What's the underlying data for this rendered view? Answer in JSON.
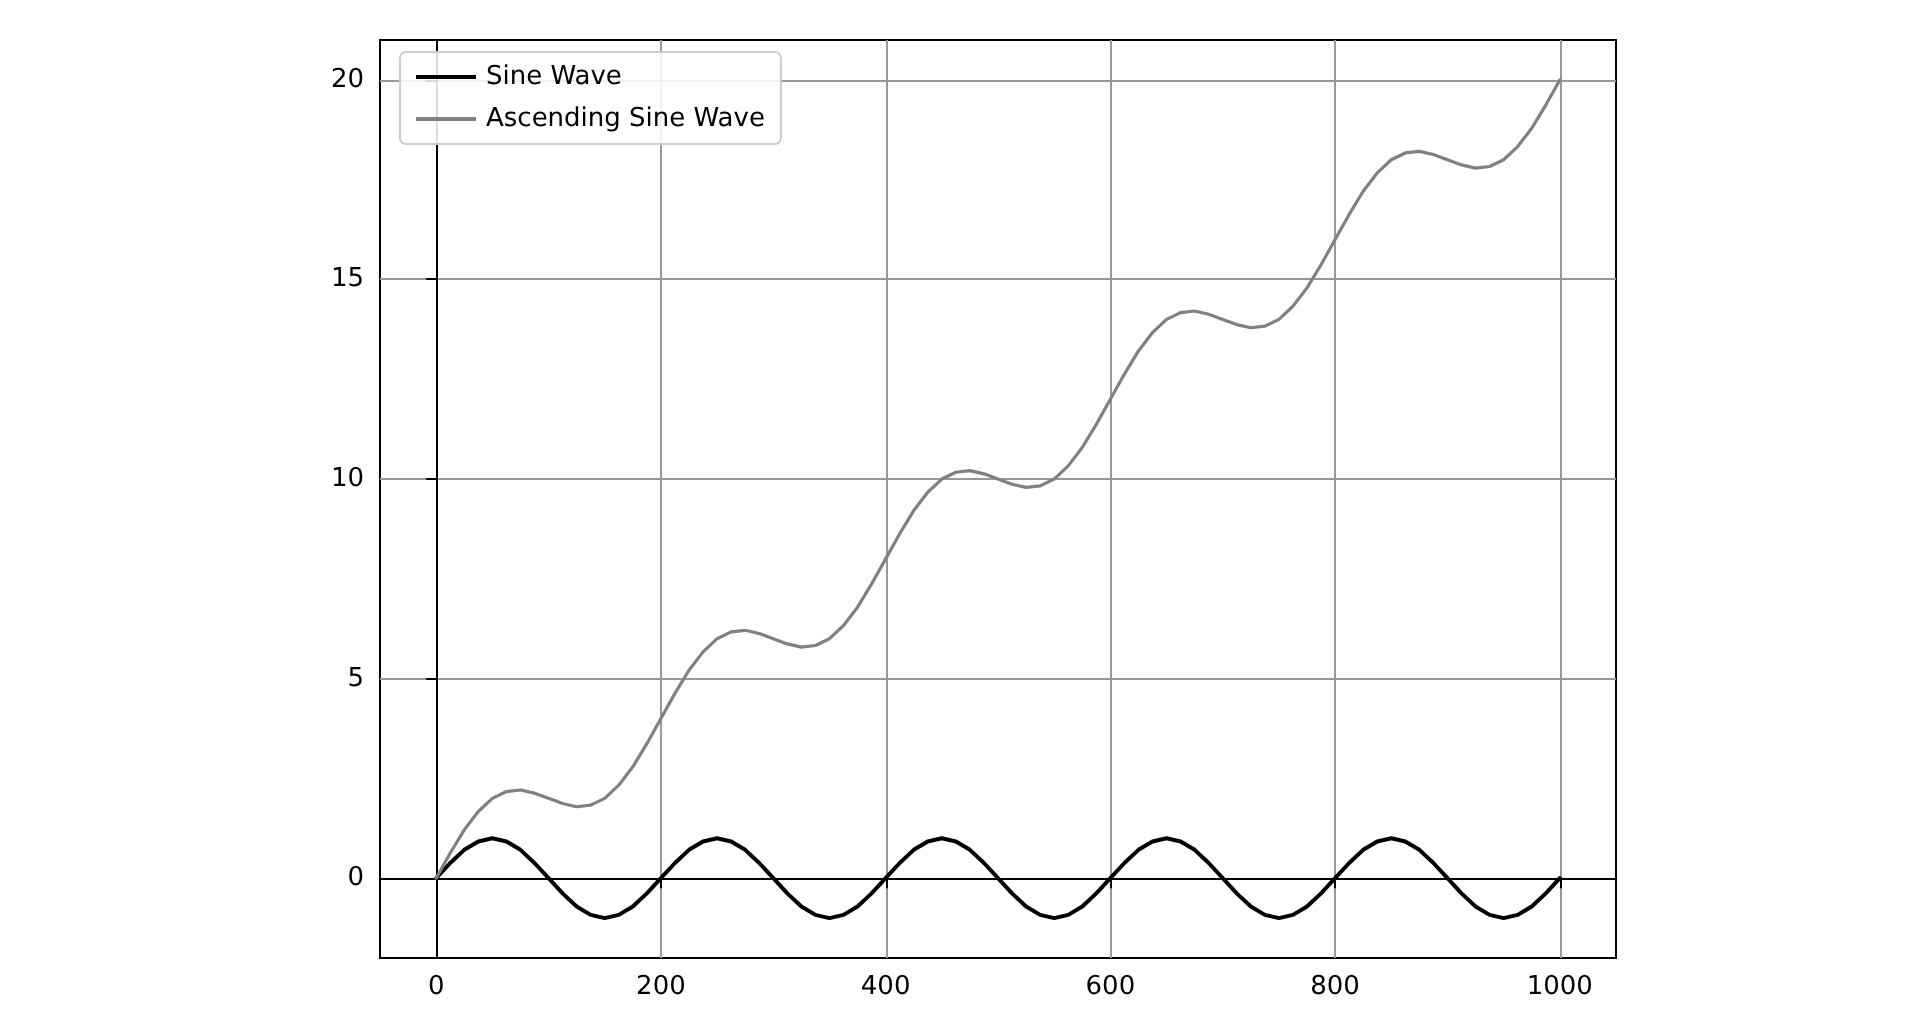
{
  "chart_data": {
    "type": "line",
    "x": [
      0,
      12.5,
      25,
      37.5,
      50,
      62.5,
      75,
      87.5,
      100,
      112.5,
      125,
      137.5,
      150,
      162.5,
      175,
      187.5,
      200,
      212.5,
      225,
      237.5,
      250,
      262.5,
      275,
      287.5,
      300,
      312.5,
      325,
      337.5,
      350,
      362.5,
      375,
      387.5,
      400,
      412.5,
      425,
      437.5,
      450,
      462.5,
      475,
      487.5,
      500,
      512.5,
      525,
      537.5,
      550,
      562.5,
      575,
      587.5,
      600,
      612.5,
      625,
      637.5,
      650,
      662.5,
      675,
      687.5,
      700,
      712.5,
      725,
      737.5,
      750,
      762.5,
      775,
      787.5,
      800,
      812.5,
      825,
      837.5,
      850,
      862.5,
      875,
      887.5,
      900,
      912.5,
      925,
      937.5,
      950,
      962.5,
      975,
      987.5,
      1000
    ],
    "series": [
      {
        "name": "Sine Wave",
        "color": "#000000",
        "values": [
          0,
          0.38,
          0.71,
          0.92,
          1,
          0.92,
          0.71,
          0.38,
          0,
          -0.38,
          -0.71,
          -0.92,
          -1,
          -0.92,
          -0.71,
          -0.38,
          0,
          0.38,
          0.71,
          0.92,
          1,
          0.92,
          0.71,
          0.38,
          0,
          -0.38,
          -0.71,
          -0.92,
          -1,
          -0.92,
          -0.71,
          -0.38,
          0,
          0.38,
          0.71,
          0.92,
          1,
          0.92,
          0.71,
          0.38,
          0,
          -0.38,
          -0.71,
          -0.92,
          -1,
          -0.92,
          -0.71,
          -0.38,
          0,
          0.38,
          0.71,
          0.92,
          1,
          0.92,
          0.71,
          0.38,
          0,
          -0.38,
          -0.71,
          -0.92,
          -1,
          -0.92,
          -0.71,
          -0.38,
          0,
          0.38,
          0.71,
          0.92,
          1,
          0.92,
          0.71,
          0.38,
          0,
          -0.38,
          -0.71,
          -0.92,
          -1,
          -0.92,
          -0.71,
          -0.38,
          0
        ]
      },
      {
        "name": "Ascending Sine Wave",
        "color": "#808080",
        "values": [
          0,
          0.63,
          1.21,
          1.67,
          2,
          2.17,
          2.21,
          2.13,
          2,
          1.87,
          1.79,
          1.83,
          2,
          2.33,
          2.79,
          3.37,
          4,
          4.63,
          5.21,
          5.67,
          6,
          6.17,
          6.21,
          6.13,
          6,
          5.87,
          5.79,
          5.83,
          6,
          6.33,
          6.79,
          7.37,
          8,
          8.63,
          9.21,
          9.67,
          10,
          10.17,
          10.21,
          10.13,
          10,
          9.87,
          9.79,
          9.83,
          10,
          10.33,
          10.79,
          11.37,
          12,
          12.63,
          13.21,
          13.67,
          14,
          14.17,
          14.21,
          14.13,
          14,
          13.87,
          13.79,
          13.83,
          14,
          14.33,
          14.79,
          15.37,
          16,
          16.63,
          17.21,
          17.67,
          18,
          18.17,
          18.21,
          18.13,
          18,
          17.87,
          17.79,
          17.83,
          18,
          18.33,
          18.79,
          19.37,
          20
        ]
      }
    ],
    "xlim": [
      -50,
      1050
    ],
    "xticks": [
      0,
      200,
      400,
      600,
      800,
      1000
    ],
    "ylim": [
      -2,
      21
    ],
    "yticks": [
      0,
      5,
      10,
      15,
      20
    ],
    "grid": true,
    "legend": "top left",
    "marker": "none",
    "line_style": "solid"
  }
}
